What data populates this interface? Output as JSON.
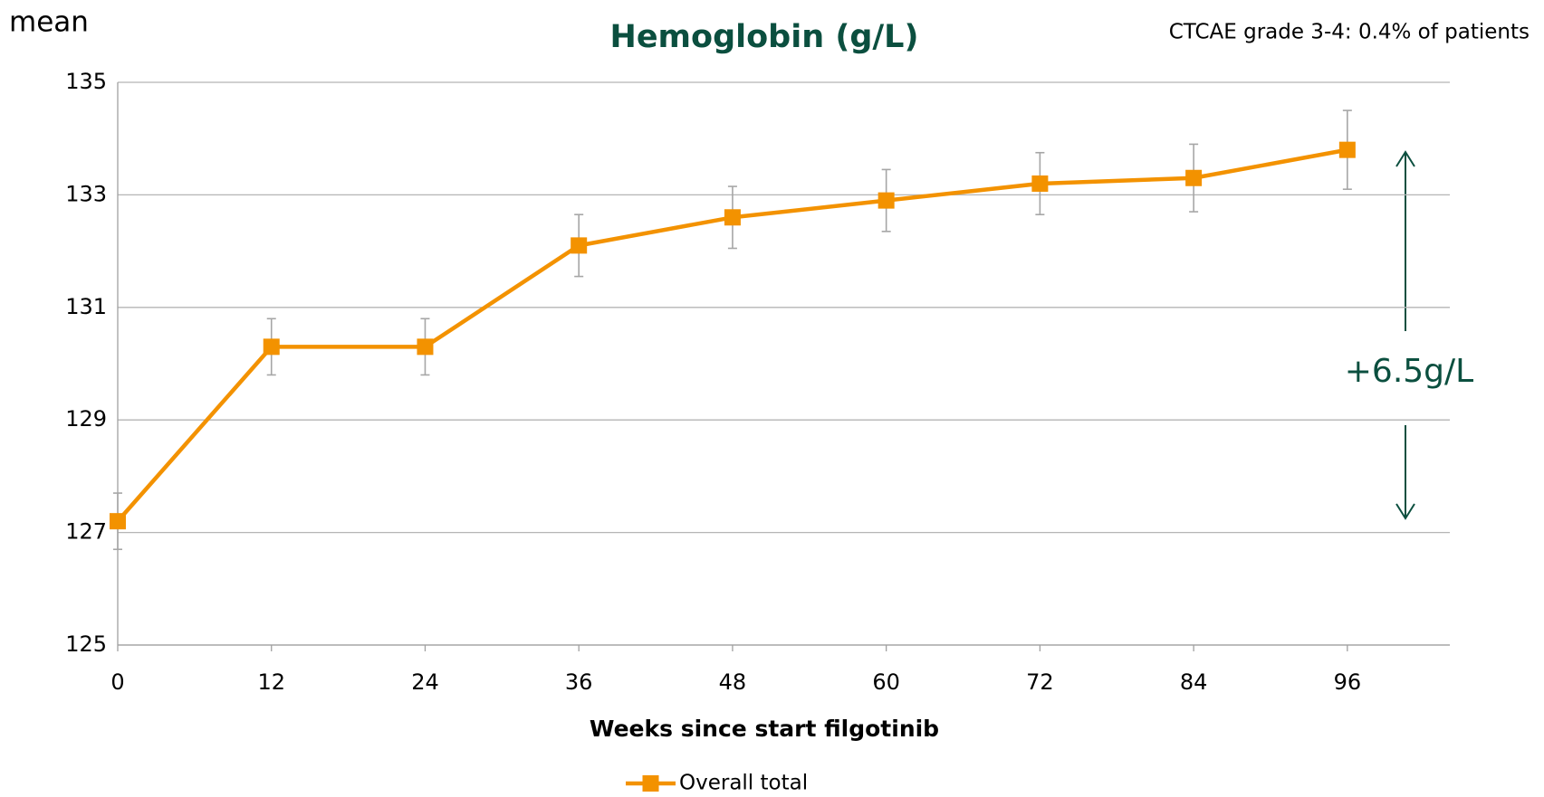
{
  "chart_data": {
    "type": "line",
    "title": "Hemoglobin (g/L)",
    "ylabel": "mean",
    "xlabel": "Weeks since start filgotinib",
    "annotations": [
      "CTCAE grade 3-4: 0.4% of patients",
      "+6.5g/L"
    ],
    "x": [
      0,
      12,
      24,
      36,
      48,
      60,
      72,
      84,
      96
    ],
    "series": [
      {
        "name": "Overall total",
        "color": "#f39200",
        "values": [
          127.2,
          130.3,
          130.3,
          132.1,
          132.6,
          132.9,
          133.2,
          133.3,
          133.8
        ],
        "errors": [
          0.5,
          0.5,
          0.5,
          0.55,
          0.55,
          0.55,
          0.55,
          0.6,
          0.7
        ]
      }
    ],
    "xlim": [
      0,
      104
    ],
    "xticks": [
      0,
      12,
      24,
      36,
      48,
      60,
      72,
      84,
      96
    ],
    "ylim": [
      125,
      135
    ],
    "yticks": [
      125,
      127,
      129,
      131,
      133,
      135
    ],
    "grid": true,
    "legend": "bottom"
  }
}
